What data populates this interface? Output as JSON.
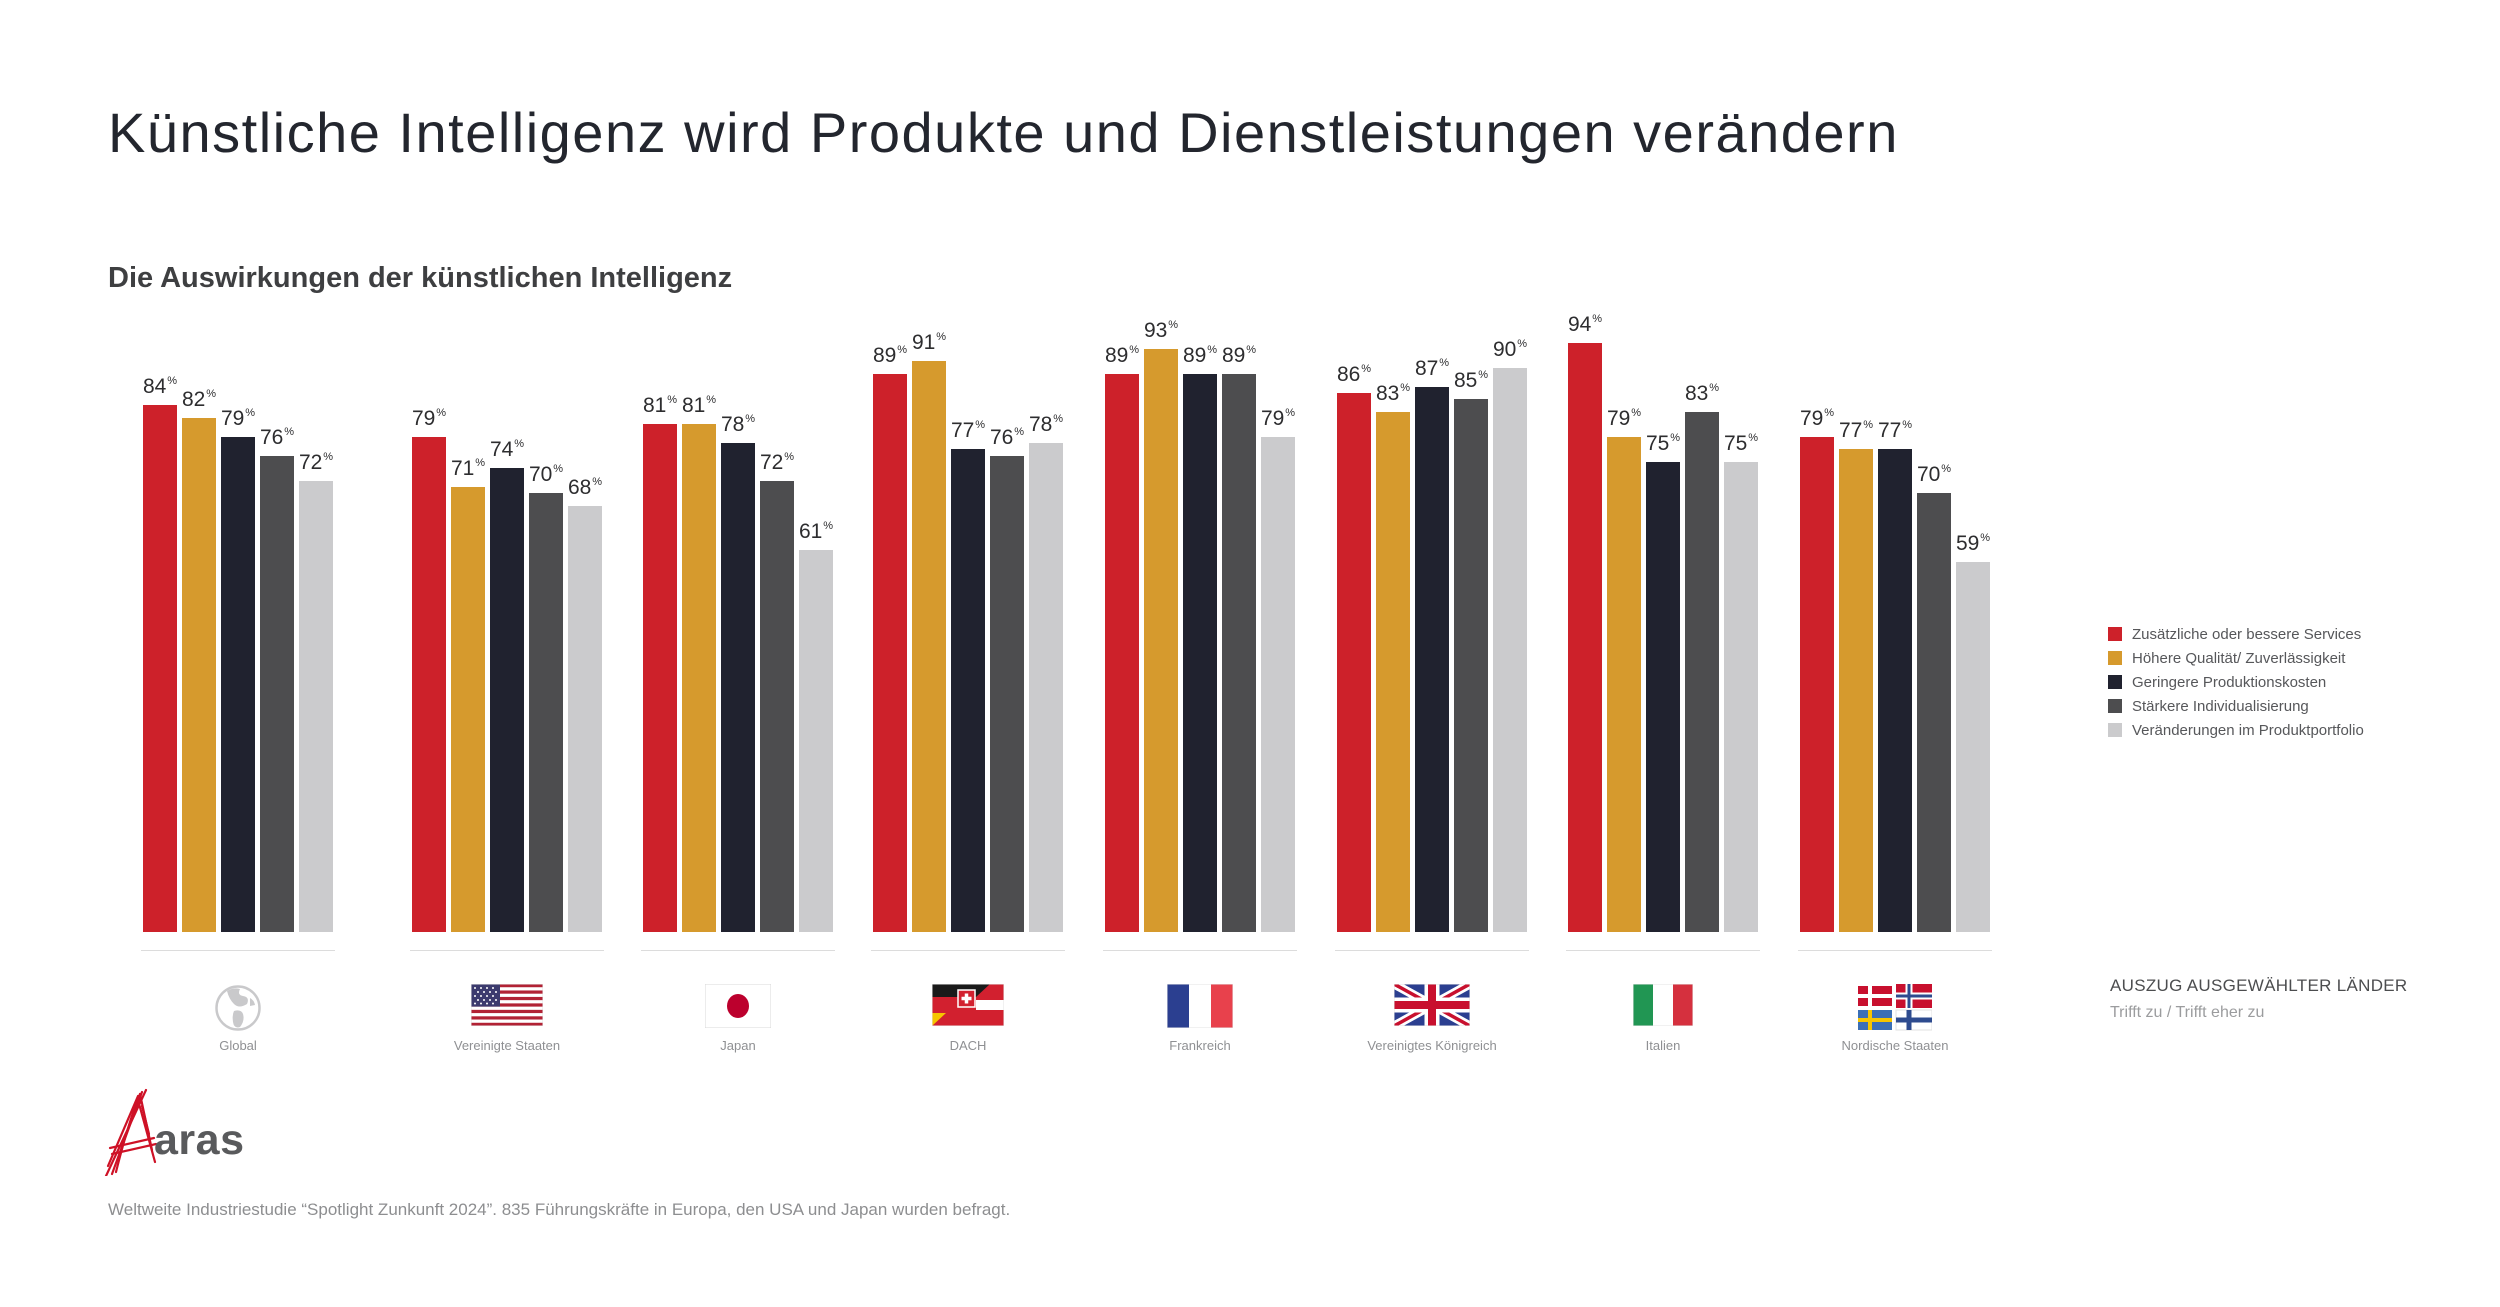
{
  "header": {
    "title": "Künstliche Intelligenz wird Produkte und Dienstleistungen verändern",
    "subtitle": "Die Auswirkungen der künstlichen Intelligenz"
  },
  "legend": [
    {
      "label": "Zusätzliche oder bessere Services",
      "color": "#CD212A"
    },
    {
      "label": "Höhere Qualität/ Zuverlässigkeit",
      "color": "#D69A2D"
    },
    {
      "label": "Geringere Produktionskosten",
      "color": "#20222F"
    },
    {
      "label": "Stärkere Individualisierung",
      "color": "#4D4D4F"
    },
    {
      "label": "Veränderungen im Produktportfolio",
      "color": "#CBCBCD"
    }
  ],
  "chart_data": {
    "type": "bar",
    "unit": "%",
    "title": "Die Auswirkungen der künstlichen Intelligenz",
    "categories": [
      "Global",
      "Vereinigte Staaten",
      "Japan",
      "DACH",
      "Frankreich",
      "Vereinigtes Königreich",
      "Italien",
      "Nordische Staaten"
    ],
    "flag_icons": [
      "globe-icon",
      "us-flag-icon",
      "japan-flag-icon",
      "dach-flag-icon",
      "france-flag-icon",
      "uk-flag-icon",
      "italy-flag-icon",
      "nordic-flag-icon"
    ],
    "series": [
      {
        "name": "Zusätzliche oder bessere Services",
        "values": [
          84,
          79,
          81,
          89,
          89,
          86,
          94,
          79
        ]
      },
      {
        "name": "Höhere Qualität/ Zuverlässigkeit",
        "values": [
          82,
          71,
          81,
          91,
          93,
          83,
          79,
          77
        ]
      },
      {
        "name": "Geringere Produktionskosten",
        "values": [
          79,
          74,
          78,
          77,
          89,
          87,
          75,
          77
        ]
      },
      {
        "name": "Stärkere Individualisierung",
        "values": [
          76,
          70,
          72,
          76,
          89,
          85,
          83,
          70
        ]
      },
      {
        "name": "Veränderungen im Produktportfolio",
        "values": [
          72,
          68,
          61,
          78,
          79,
          90,
          75,
          59
        ]
      }
    ],
    "ylim": [
      0,
      100
    ],
    "grid": false,
    "legend_position": "right",
    "value_labels": true
  },
  "sidebar": {
    "note_title": "AUSZUG AUSGEWÄHLTER LÄNDER",
    "note_sub": "Trifft zu / Trifft eher zu"
  },
  "footer": {
    "logo_text": "aras",
    "footnote": "Weltweite Industriestudie “Spotlight Zunkunft 2024”. 835 Führungskräfte in Europa, den USA und Japan wurden befragt."
  }
}
